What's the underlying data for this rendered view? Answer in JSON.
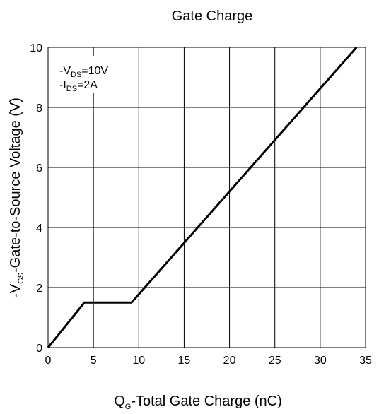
{
  "chart_data": {
    "type": "line",
    "title": "Gate Charge",
    "xlabel": {
      "main": "Q",
      "sub": "G",
      "rest": "-Total Gate Charge (nC)"
    },
    "ylabel": {
      "pre": "-V",
      "sub": "GS",
      "rest": "-Gate-to-Source Voltage (V)"
    },
    "xlim": [
      0,
      35
    ],
    "ylim": [
      0,
      10
    ],
    "xticks": [
      0,
      5,
      10,
      15,
      20,
      25,
      30,
      35
    ],
    "yticks": [
      0,
      2,
      4,
      6,
      8,
      10
    ],
    "grid": true,
    "conditions": [
      {
        "pre": "-V",
        "sub": "DS",
        "rest": "=10V"
      },
      {
        "pre": "-I",
        "sub": "DS",
        "rest": "=2A"
      }
    ],
    "series": [
      {
        "x": [
          0,
          4,
          9.2,
          34
        ],
        "y": [
          0,
          1.5,
          1.5,
          10
        ]
      }
    ],
    "colors": {
      "line": "#000000",
      "grid": "#000000"
    }
  }
}
